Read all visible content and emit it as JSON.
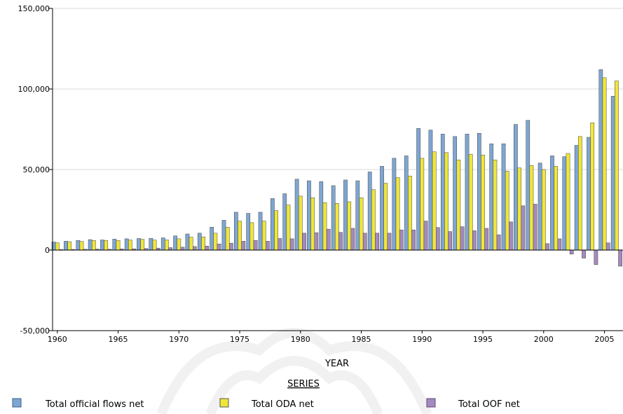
{
  "chart_data": {
    "type": "bar",
    "xlabel": "YEAR",
    "ylabel": "",
    "ylim": [
      -50000,
      150000
    ],
    "yticks": [
      "150,000",
      "100,000",
      "50,000",
      "0",
      "-50,000"
    ],
    "xticks": [
      "1960",
      "1965",
      "1970",
      "1975",
      "1980",
      "1985",
      "1990",
      "1995",
      "2000",
      "2005"
    ],
    "grid": true,
    "legend_title": "SERIES",
    "legend_position": "bottom",
    "categories": [
      "1960",
      "1961",
      "1962",
      "1963",
      "1964",
      "1965",
      "1966",
      "1967",
      "1968",
      "1969",
      "1970",
      "1971",
      "1972",
      "1973",
      "1974",
      "1975",
      "1976",
      "1977",
      "1978",
      "1979",
      "1980",
      "1981",
      "1982",
      "1983",
      "1984",
      "1985",
      "1986",
      "1987",
      "1988",
      "1989",
      "1990",
      "1991",
      "1992",
      "1993",
      "1994",
      "1995",
      "1996",
      "1997",
      "1998",
      "1999",
      "2000",
      "2001",
      "2002",
      "2003",
      "2004",
      "2005",
      "2006"
    ],
    "series": [
      {
        "name": "Total official flows net",
        "color": "#7EA6D2",
        "values": [
          5000,
          5500,
          6000,
          6500,
          6300,
          6800,
          7000,
          7200,
          7300,
          7600,
          8800,
          10000,
          10500,
          14200,
          18500,
          23500,
          22800,
          23500,
          32000,
          35000,
          44000,
          43000,
          42500,
          40000,
          43500,
          43000,
          48500,
          52000,
          57000,
          58500,
          75500,
          74500,
          72000,
          70500,
          72000,
          72500,
          66000,
          66000,
          78000,
          80500,
          54000,
          58500,
          58000,
          65000,
          70000,
          112000,
          95500
        ]
      },
      {
        "name": "Total ODA net",
        "color": "#EFE63A",
        "values": [
          4500,
          5200,
          5400,
          6000,
          6000,
          6000,
          6200,
          6700,
          6200,
          6300,
          7000,
          8000,
          8200,
          10500,
          14200,
          18000,
          17000,
          18000,
          24500,
          28000,
          33500,
          32500,
          29500,
          29000,
          30000,
          32500,
          37500,
          41500,
          45000,
          46000,
          57000,
          61000,
          60500,
          56000,
          59500,
          59000,
          56000,
          49000,
          51000,
          52500,
          50000,
          52000,
          60000,
          70500,
          79000,
          107000,
          105000
        ]
      },
      {
        "name": "Total OOF net",
        "color": "#A48ABF",
        "values": [
          300,
          400,
          500,
          600,
          500,
          700,
          800,
          1000,
          1200,
          1500,
          1800,
          2200,
          2500,
          3800,
          4300,
          5500,
          6000,
          5500,
          7200,
          7000,
          10500,
          10800,
          13000,
          11000,
          13500,
          10500,
          10500,
          10500,
          12500,
          12500,
          18000,
          14000,
          11500,
          14500,
          12000,
          13500,
          9500,
          17500,
          27500,
          28500,
          4000,
          7000,
          -2500,
          -5000,
          -9000,
          4500,
          -10000
        ]
      }
    ]
  }
}
